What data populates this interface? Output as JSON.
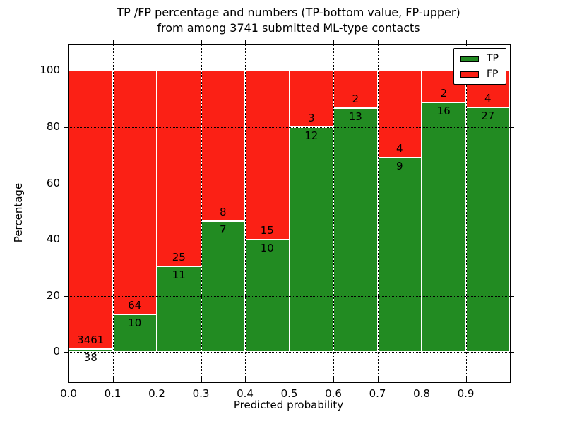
{
  "figure": {
    "title_line1": "TP /FP percentage and numbers (TP-bottom value, FP-upper)",
    "title_line2": "from among 3741 submitted ML-type contacts",
    "xlabel": "Predicted probability",
    "ylabel": "Percentage"
  },
  "legend": {
    "items": [
      {
        "label": "TP",
        "color": "#228b22"
      },
      {
        "label": "FP",
        "color": "#fb2015"
      }
    ]
  },
  "chart_data": {
    "type": "bar",
    "stacked": true,
    "normalized_to_percent": true,
    "title": "TP /FP percentage and numbers (TP-bottom value, FP-upper) from among 3741 submitted ML-type contacts",
    "xlabel": "Predicted probability",
    "ylabel": "Percentage",
    "total_contacts": 3741,
    "bin_edges": [
      0.0,
      0.1,
      0.2,
      0.3,
      0.4,
      0.5,
      0.6,
      0.7,
      0.8,
      0.9,
      1.0
    ],
    "series": [
      {
        "name": "TP",
        "color": "#228b22",
        "values": [
          38,
          10,
          11,
          7,
          10,
          12,
          13,
          9,
          16,
          27
        ]
      },
      {
        "name": "FP",
        "color": "#fb2015",
        "values": [
          3461,
          64,
          25,
          8,
          15,
          3,
          2,
          4,
          2,
          4
        ]
      }
    ],
    "tp_percent_estimated": [
      1.1,
      13.5,
      30.6,
      46.7,
      40.0,
      80.0,
      86.7,
      69.2,
      88.9,
      87.1
    ],
    "x_ticks": [
      "0.0",
      "0.1",
      "0.2",
      "0.3",
      "0.4",
      "0.5",
      "0.6",
      "0.7",
      "0.8",
      "0.9"
    ],
    "y_ticks": [
      0,
      20,
      40,
      60,
      80,
      100
    ],
    "xlim": [
      0.0,
      1.0
    ],
    "ylim": [
      -10.7,
      109.4
    ],
    "grid": true,
    "grid_style": "dotted",
    "bar_edge_color": "#ffffff",
    "legend_position": "upper right"
  }
}
